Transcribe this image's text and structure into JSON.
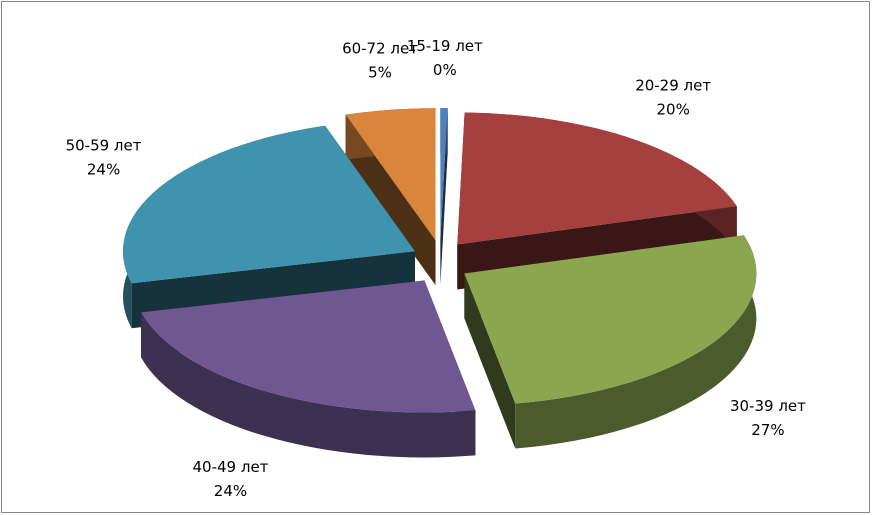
{
  "chart_data": {
    "type": "pie3d",
    "categories": [
      "15-19 лет",
      "20-29 лет",
      "30-39 лет",
      "40-49 лет",
      "50-59 лет",
      "60-72 лет"
    ],
    "values": [
      0.4,
      20,
      27,
      24,
      24,
      5
    ],
    "value_labels": [
      "0%",
      "20%",
      "27%",
      "24%",
      "24%",
      "5%"
    ],
    "colors": [
      "#4f81bd",
      "#a5403f",
      "#8ba64f",
      "#6f5792",
      "#3f93ae",
      "#d9853b"
    ]
  }
}
